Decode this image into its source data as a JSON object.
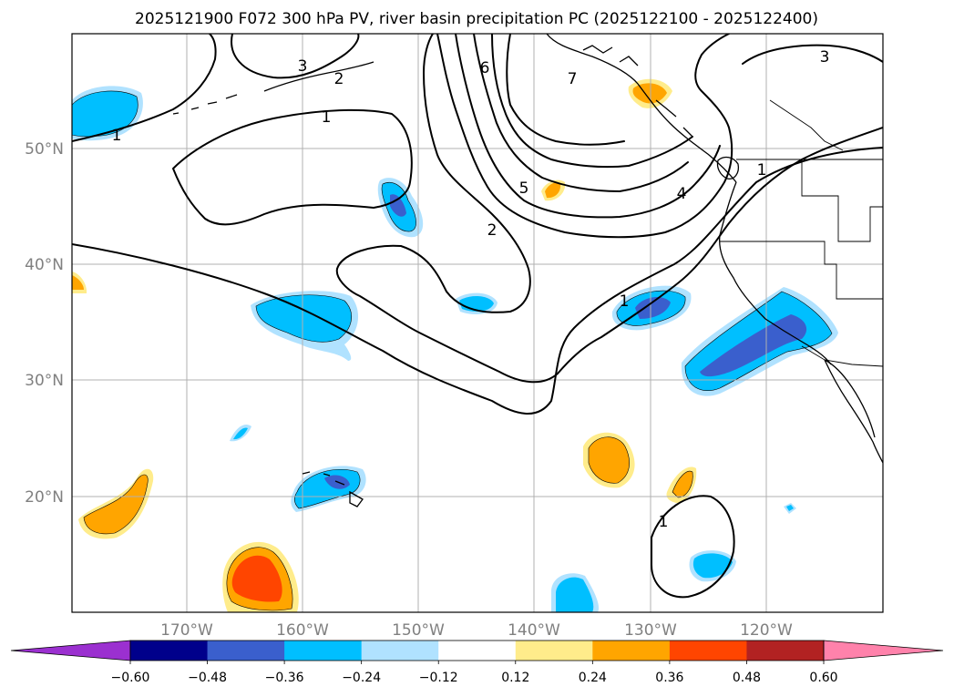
{
  "title": "2025121900 F072 300 hPa PV, river basin precipitation PC (2025122100 - 2025122400)",
  "axes": {
    "lat_labels": [
      "50°N",
      "40°N",
      "30°N",
      "20°N"
    ],
    "lon_labels": [
      "170°W",
      "160°W",
      "150°W",
      "140°W",
      "130°W",
      "120°W"
    ]
  },
  "pv_contour_labels": [
    "1",
    "1",
    "1",
    "1",
    "1",
    "2",
    "2",
    "3",
    "3",
    "4",
    "5",
    "6",
    "7"
  ],
  "colorbar": {
    "ticks": [
      "−0.60",
      "−0.48",
      "−0.36",
      "−0.24",
      "−0.12",
      "0.12",
      "0.24",
      "0.36",
      "0.48",
      "0.60"
    ],
    "colors": {
      "under": "#9b30d0",
      "bins": [
        "#00008b",
        "#3a5fcd",
        "#00bfff",
        "#b0e2ff",
        "#ffffff",
        "#ffec8b",
        "#ffa500",
        "#ff4500",
        "#b22222",
        "#ff82ab"
      ],
      "over": "#ff82ab"
    }
  },
  "colors": {
    "blue_dark": "#00008b",
    "blue_mid": "#3a5fcd",
    "blue": "#00bfff",
    "blue_light": "#b0e2ff",
    "yellow": "#ffec8b",
    "orange": "#ffa500",
    "red_orange": "#ff4500",
    "grid": "#b0b0b0",
    "axis_label": "#808080"
  }
}
